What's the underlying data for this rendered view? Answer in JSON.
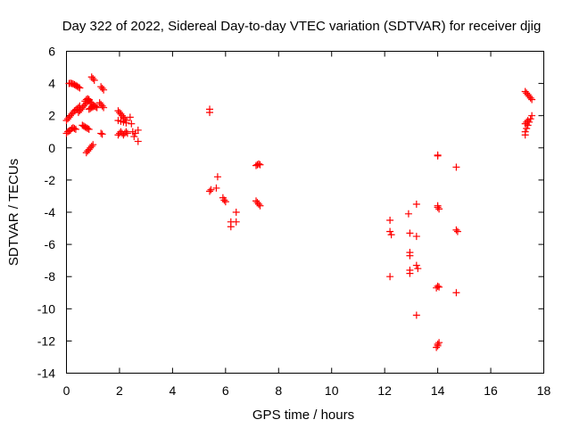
{
  "chart_data": {
    "type": "scatter",
    "title": "Day 322 of 2022, Sidereal Day-to-day VTEC variation (SDTVAR) for receiver djig",
    "xlabel": "GPS time / hours",
    "ylabel": "SDTVAR / TECUs",
    "xlim": [
      0,
      18
    ],
    "ylim": [
      -14,
      6
    ],
    "xticks": [
      "0",
      "2",
      "4",
      "6",
      "8",
      "10",
      "12",
      "14",
      "16",
      "18"
    ],
    "yticks": [
      "-14",
      "-12",
      "-10",
      "-8",
      "-6",
      "-4",
      "-2",
      "0",
      "2",
      "4",
      "6"
    ],
    "grid": false,
    "marker": "plus",
    "color": "#ff0000",
    "points": [
      [
        0.0,
        0.9
      ],
      [
        0.05,
        1.0
      ],
      [
        0.1,
        1.05
      ],
      [
        0.15,
        1.1
      ],
      [
        0.2,
        1.2
      ],
      [
        0.25,
        1.25
      ],
      [
        0.3,
        1.2
      ],
      [
        0.35,
        1.15
      ],
      [
        0.0,
        1.7
      ],
      [
        0.05,
        1.8
      ],
      [
        0.1,
        1.9
      ],
      [
        0.15,
        2.0
      ],
      [
        0.2,
        2.1
      ],
      [
        0.25,
        2.2
      ],
      [
        0.3,
        2.3
      ],
      [
        0.35,
        2.35
      ],
      [
        0.4,
        2.4
      ],
      [
        0.45,
        2.5
      ],
      [
        0.5,
        2.6
      ],
      [
        0.1,
        4.0
      ],
      [
        0.15,
        4.02
      ],
      [
        0.2,
        4.0
      ],
      [
        0.25,
        3.97
      ],
      [
        0.3,
        3.93
      ],
      [
        0.35,
        3.88
      ],
      [
        0.4,
        3.83
      ],
      [
        0.45,
        3.78
      ],
      [
        0.5,
        3.72
      ],
      [
        0.45,
        2.2
      ],
      [
        0.5,
        2.3
      ],
      [
        0.55,
        2.4
      ],
      [
        0.6,
        2.5
      ],
      [
        0.65,
        2.6
      ],
      [
        0.7,
        2.7
      ],
      [
        0.75,
        2.8
      ],
      [
        0.8,
        2.9
      ],
      [
        0.85,
        3.0
      ],
      [
        0.6,
        1.4
      ],
      [
        0.65,
        1.35
      ],
      [
        0.7,
        1.3
      ],
      [
        0.75,
        1.25
      ],
      [
        0.8,
        1.2
      ],
      [
        0.85,
        1.15
      ],
      [
        0.75,
        -0.3
      ],
      [
        0.8,
        -0.2
      ],
      [
        0.85,
        -0.1
      ],
      [
        0.9,
        0.0
      ],
      [
        0.95,
        0.1
      ],
      [
        1.0,
        0.2
      ],
      [
        0.7,
        2.9
      ],
      [
        0.75,
        3.0
      ],
      [
        0.8,
        3.05
      ],
      [
        0.85,
        2.95
      ],
      [
        0.9,
        2.85
      ],
      [
        0.95,
        2.75
      ],
      [
        1.0,
        2.65
      ],
      [
        1.05,
        2.6
      ],
      [
        1.1,
        2.55
      ],
      [
        1.15,
        2.5
      ],
      [
        0.85,
        2.4
      ],
      [
        0.9,
        2.45
      ],
      [
        0.95,
        2.5
      ],
      [
        1.0,
        2.55
      ],
      [
        1.05,
        2.6
      ],
      [
        0.95,
        4.4
      ],
      [
        1.0,
        4.3
      ],
      [
        1.05,
        4.2
      ],
      [
        1.3,
        3.8
      ],
      [
        1.35,
        3.7
      ],
      [
        1.4,
        3.6
      ],
      [
        1.25,
        2.8
      ],
      [
        1.3,
        2.7
      ],
      [
        1.35,
        2.6
      ],
      [
        1.4,
        2.5
      ],
      [
        1.3,
        0.9
      ],
      [
        1.35,
        0.85
      ],
      [
        1.95,
        2.3
      ],
      [
        2.0,
        2.2
      ],
      [
        2.05,
        2.1
      ],
      [
        2.1,
        2.0
      ],
      [
        2.15,
        1.9
      ],
      [
        2.2,
        1.8
      ],
      [
        2.25,
        1.7
      ],
      [
        1.95,
        1.7
      ],
      [
        2.05,
        1.65
      ],
      [
        2.15,
        1.6
      ],
      [
        2.25,
        1.55
      ],
      [
        1.95,
        0.8
      ],
      [
        2.0,
        0.9
      ],
      [
        2.05,
        1.0
      ],
      [
        2.1,
        0.9
      ],
      [
        2.15,
        0.8
      ],
      [
        2.2,
        0.9
      ],
      [
        2.25,
        1.0
      ],
      [
        2.3,
        0.9
      ],
      [
        2.4,
        1.9
      ],
      [
        2.45,
        1.5
      ],
      [
        2.5,
        1.0
      ],
      [
        2.55,
        0.7
      ],
      [
        2.6,
        0.9
      ],
      [
        2.7,
        1.1
      ],
      [
        2.7,
        0.4
      ],
      [
        5.4,
        2.4
      ],
      [
        5.4,
        2.2
      ],
      [
        5.4,
        -2.7
      ],
      [
        5.45,
        -2.6
      ],
      [
        5.65,
        -2.5
      ],
      [
        5.7,
        -1.8
      ],
      [
        5.9,
        -3.1
      ],
      [
        5.95,
        -3.25
      ],
      [
        6.0,
        -3.35
      ],
      [
        6.2,
        -4.6
      ],
      [
        6.2,
        -4.9
      ],
      [
        6.4,
        -4.6
      ],
      [
        6.4,
        -4.0
      ],
      [
        7.15,
        -1.1
      ],
      [
        7.2,
        -1.05
      ],
      [
        7.25,
        -1.0
      ],
      [
        7.3,
        -1.05
      ],
      [
        7.15,
        -3.3
      ],
      [
        7.2,
        -3.4
      ],
      [
        7.25,
        -3.5
      ],
      [
        7.3,
        -3.6
      ],
      [
        12.2,
        -4.5
      ],
      [
        12.2,
        -5.2
      ],
      [
        12.25,
        -5.4
      ],
      [
        12.2,
        -8.0
      ],
      [
        12.9,
        -4.1
      ],
      [
        12.95,
        -5.3
      ],
      [
        12.95,
        -6.5
      ],
      [
        12.95,
        -6.7
      ],
      [
        12.95,
        -7.6
      ],
      [
        12.95,
        -7.8
      ],
      [
        13.2,
        -3.5
      ],
      [
        13.2,
        -5.5
      ],
      [
        13.2,
        -7.3
      ],
      [
        13.25,
        -7.5
      ],
      [
        13.2,
        -10.4
      ],
      [
        14.0,
        -0.45
      ],
      [
        14.0,
        -0.5
      ],
      [
        14.0,
        -3.6
      ],
      [
        14.0,
        -3.7
      ],
      [
        14.05,
        -3.8
      ],
      [
        13.95,
        -8.7
      ],
      [
        14.0,
        -8.6
      ],
      [
        14.05,
        -8.65
      ],
      [
        13.95,
        -12.4
      ],
      [
        14.0,
        -12.3
      ],
      [
        14.0,
        -12.2
      ],
      [
        14.05,
        -12.1
      ],
      [
        14.7,
        -1.2
      ],
      [
        14.7,
        -5.1
      ],
      [
        14.75,
        -5.2
      ],
      [
        14.7,
        -9.0
      ],
      [
        17.3,
        3.5
      ],
      [
        17.35,
        3.4
      ],
      [
        17.4,
        3.3
      ],
      [
        17.45,
        3.2
      ],
      [
        17.5,
        3.1
      ],
      [
        17.55,
        3.0
      ],
      [
        17.3,
        0.8
      ],
      [
        17.3,
        1.0
      ],
      [
        17.35,
        1.2
      ],
      [
        17.4,
        1.4
      ],
      [
        17.45,
        1.6
      ],
      [
        17.5,
        1.8
      ],
      [
        17.55,
        2.0
      ],
      [
        17.3,
        1.5
      ],
      [
        17.35,
        1.6
      ],
      [
        17.4,
        1.7
      ]
    ]
  }
}
